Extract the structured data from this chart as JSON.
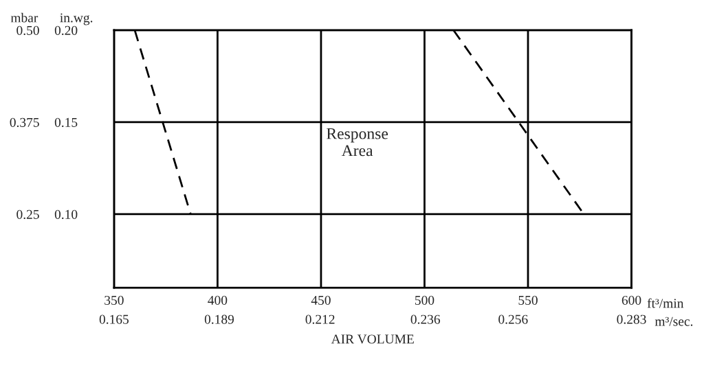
{
  "chart_data": {
    "type": "line",
    "xlabel": "AIR VOLUME",
    "ylabel": "in.wg.",
    "y2label": "mbar",
    "series": [
      {
        "color": "#000000",
        "x": [
          360,
          387
        ],
        "values": [
          0.2,
          0.1
        ]
      },
      {
        "color": "#000000",
        "x": [
          514,
          577
        ],
        "values": [
          0.2,
          0.1
        ]
      }
    ],
    "xlim": [
      350,
      600
    ],
    "xticks": [
      350,
      400,
      450,
      500,
      550,
      600
    ],
    "x2lim": [
      0.165,
      0.283
    ],
    "x2ticks": [
      0.165,
      0.189,
      0.212,
      0.236,
      0.256,
      0.283
    ],
    "ylim": [
      0.06,
      0.2
    ],
    "yticks": [
      {
        "value": 0.1,
        "label": "0.10"
      },
      {
        "value": 0.15,
        "label": "0.15"
      },
      {
        "value": 0.2,
        "label": "0.20"
      }
    ],
    "y2lim": [
      0.15,
      0.5
    ],
    "y2ticks": [
      {
        "value": 0.25,
        "label": "0.25"
      },
      {
        "value": 0.375,
        "label": "0.375"
      },
      {
        "value": 0.5,
        "label": "0.50"
      }
    ],
    "annotations": [
      "Response\nArea",
      "ft³/min",
      "m³/sec."
    ],
    "grid": true,
    "legend": false,
    "line_style": "dashed",
    "marker": "none"
  }
}
